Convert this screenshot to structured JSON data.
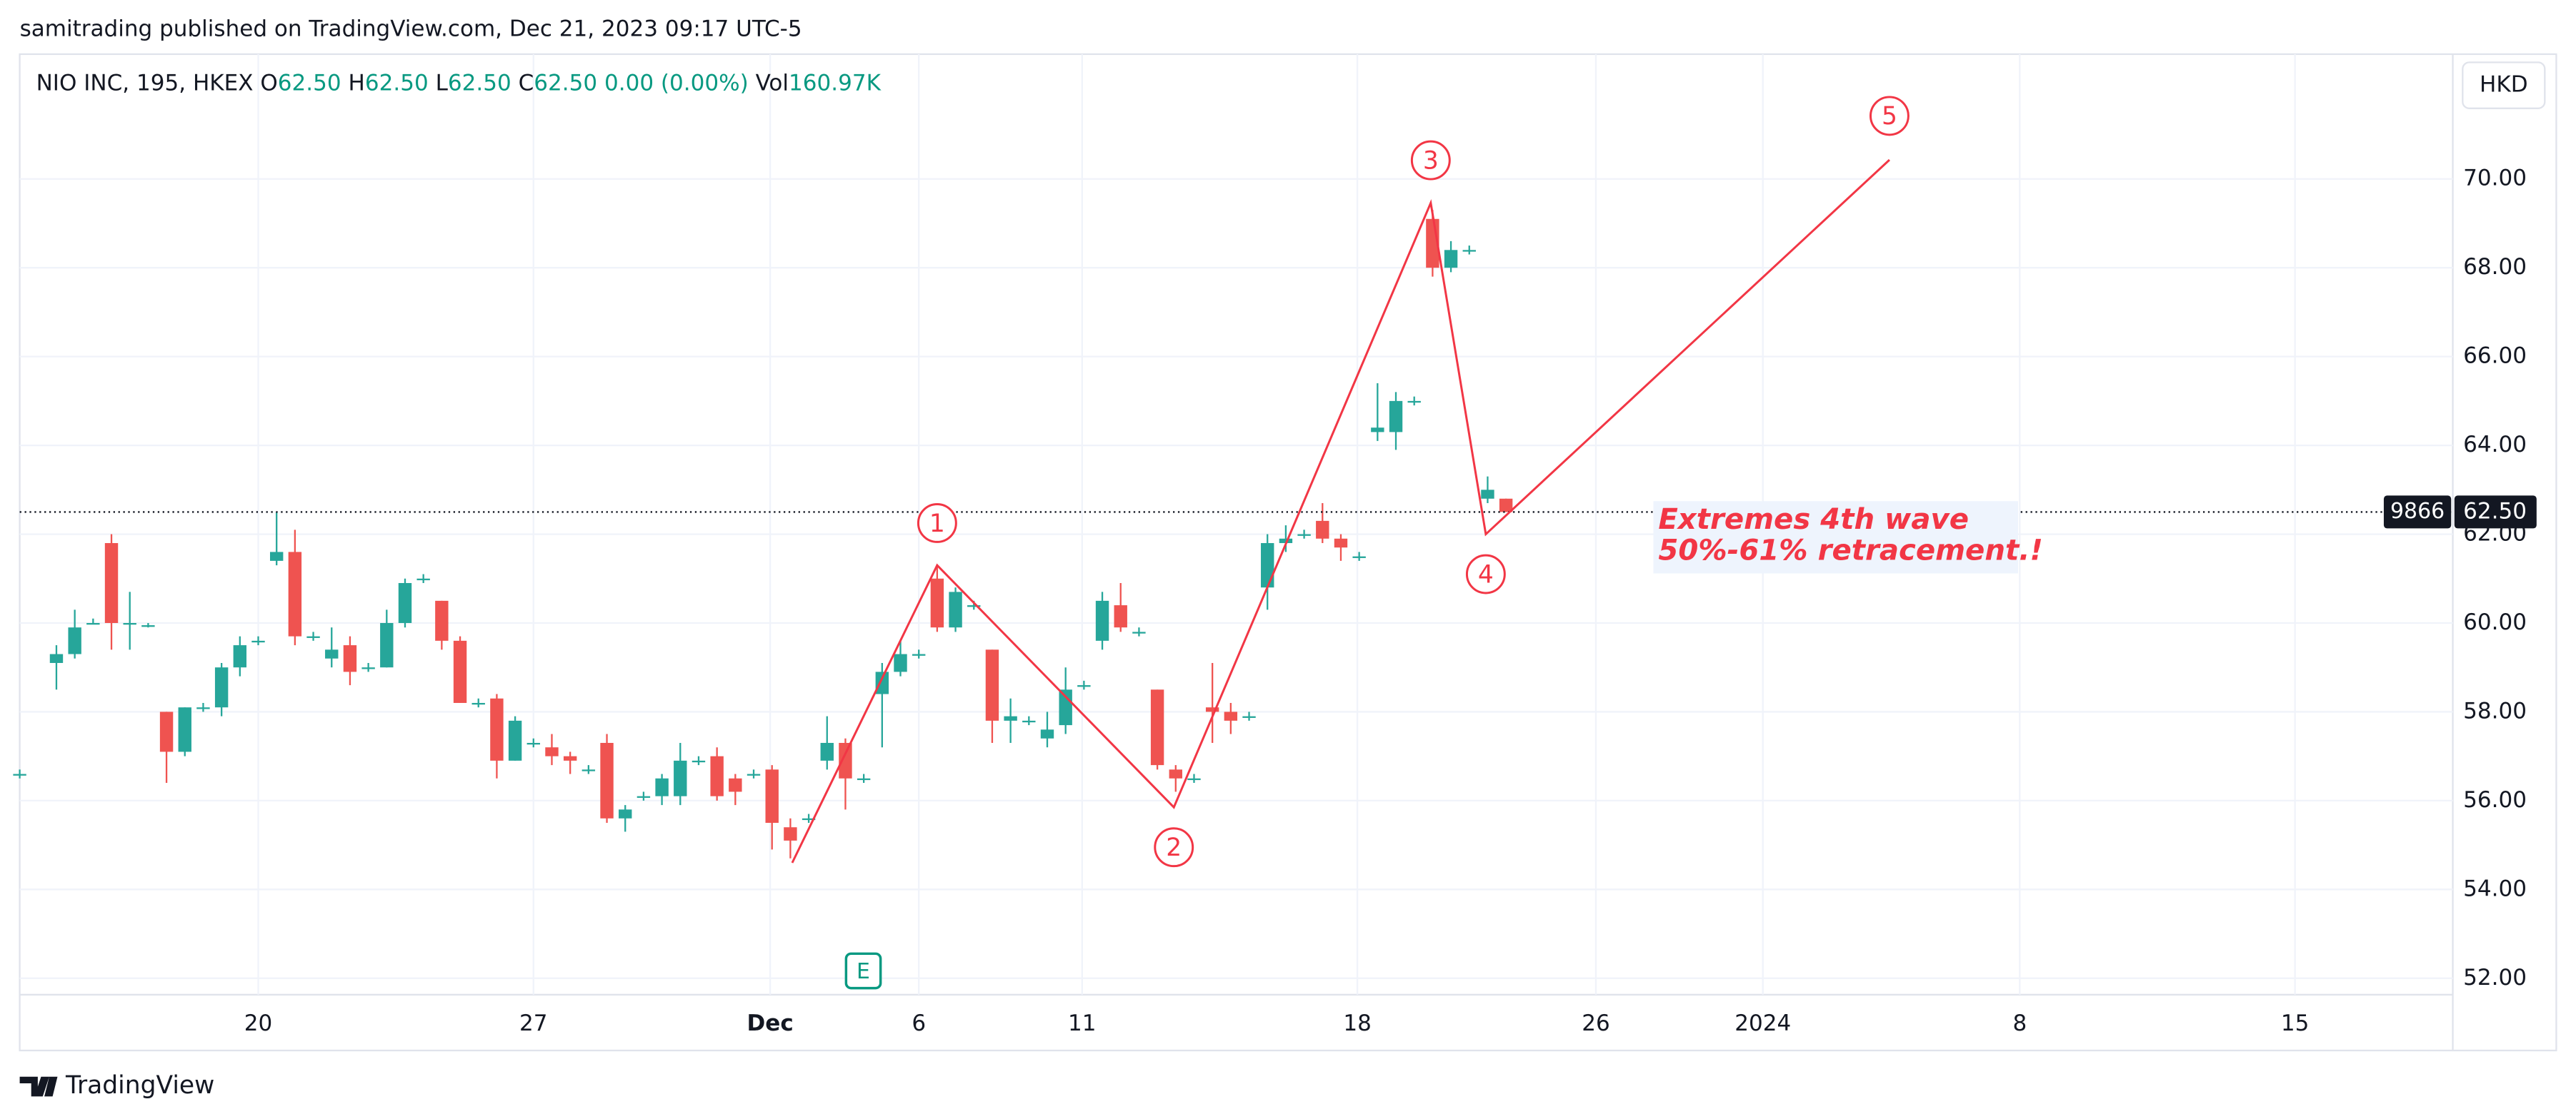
{
  "chart_data": {
    "type": "candlestick",
    "published": "samitrading published on TradingView.com, Dec 21, 2023 09:17 UTC-5",
    "legend": {
      "symbol": "NIO INC, 195, HKEX",
      "o": "O",
      "open": "62.50",
      "h": "H",
      "high": "62.50",
      "l": "L",
      "low": "62.50",
      "c": "C",
      "close": "62.50",
      "change": "0.00 (0.00%)",
      "vol": "Vol",
      "volume": "160.97K"
    },
    "currency": "HKD",
    "brand": "TradingView",
    "event_marker": "E",
    "up_color": "#26a69a",
    "down_color": "#ef5350",
    "grid": true,
    "xlim": [
      0,
      132.6
    ],
    "ylim": [
      51.63,
      72.81
    ],
    "xticks": [
      {
        "value": 13,
        "label": "20"
      },
      {
        "value": 28,
        "label": "27"
      },
      {
        "value": 40.9,
        "label": "Dec"
      },
      {
        "value": 49,
        "label": "6"
      },
      {
        "value": 57.9,
        "label": "11"
      },
      {
        "value": 72.9,
        "label": "18"
      },
      {
        "value": 85.9,
        "label": "26"
      },
      {
        "value": 95,
        "label": "2024"
      },
      {
        "value": 109,
        "label": "8"
      },
      {
        "value": 124,
        "label": "15"
      }
    ],
    "yticks": [
      {
        "value": 52,
        "label": "52.00"
      },
      {
        "value": 54,
        "label": "54.00"
      },
      {
        "value": 56,
        "label": "56.00"
      },
      {
        "value": 58,
        "label": "58.00"
      },
      {
        "value": 60,
        "label": "60.00"
      },
      {
        "value": 62,
        "label": "62.00"
      },
      {
        "value": 64,
        "label": "64.00"
      },
      {
        "value": 66,
        "label": "66.00"
      },
      {
        "value": 68,
        "label": "68.00"
      },
      {
        "value": 70,
        "label": "70.00"
      }
    ],
    "open": [
      56.6,
      null,
      59.1,
      59.3,
      60.0,
      61.8,
      60.0,
      59.95,
      58.0,
      57.1,
      58.1,
      58.1,
      59.0,
      59.6,
      61.4,
      61.6,
      59.7,
      59.2,
      59.5,
      59.0,
      59.0,
      60.0,
      61.0,
      60.5,
      59.6,
      58.2,
      58.3,
      56.9,
      57.3,
      57.2,
      57.0,
      56.7,
      57.3,
      55.6,
      56.1,
      56.1,
      56.1,
      56.9,
      57.0,
      56.5,
      56.6,
      56.7,
      55.4,
      55.6,
      56.9,
      57.3,
      56.5,
      58.4,
      58.9,
      59.3,
      61.0,
      59.9,
      60.4,
      59.4,
      57.8,
      57.8,
      57.4,
      57.7,
      58.6,
      59.6,
      60.4,
      59.8,
      58.5,
      56.7,
      56.5,
      58.1,
      58.0,
      57.9,
      60.8,
      61.8,
      62.0,
      62.3,
      61.9,
      61.5,
      64.3,
      64.3,
      65.0,
      69.1,
      68.0,
      68.4,
      62.8,
      62.8
    ],
    "high": [
      56.7,
      null,
      59.5,
      60.3,
      60.1,
      62.0,
      60.7,
      60.0,
      58.0,
      58.1,
      58.2,
      59.1,
      59.7,
      59.7,
      62.5,
      62.1,
      59.8,
      59.9,
      59.7,
      59.1,
      60.3,
      61.0,
      61.1,
      60.5,
      59.7,
      58.3,
      58.4,
      57.9,
      57.4,
      57.5,
      57.1,
      56.8,
      57.5,
      55.9,
      56.2,
      56.6,
      57.3,
      57.0,
      57.2,
      56.6,
      56.7,
      56.8,
      55.6,
      55.7,
      57.9,
      57.4,
      56.6,
      59.1,
      59.6,
      59.4,
      61.3,
      60.8,
      60.5,
      59.4,
      58.3,
      57.9,
      58.0,
      59.0,
      58.7,
      60.7,
      60.9,
      59.9,
      58.5,
      56.8,
      56.6,
      59.1,
      58.2,
      58.0,
      62.0,
      62.2,
      62.1,
      62.7,
      62.0,
      61.6,
      65.4,
      65.2,
      65.1,
      69.3,
      68.6,
      68.5,
      63.3,
      62.8
    ],
    "low": [
      56.5,
      null,
      58.5,
      59.2,
      60.0,
      59.4,
      59.4,
      59.9,
      56.4,
      57.0,
      58.0,
      57.9,
      58.8,
      59.5,
      61.3,
      59.5,
      59.6,
      59.0,
      58.6,
      58.9,
      59.0,
      59.9,
      60.9,
      59.4,
      58.2,
      58.1,
      56.5,
      56.9,
      57.2,
      56.8,
      56.6,
      56.6,
      55.5,
      55.3,
      56.0,
      55.9,
      55.9,
      56.8,
      56.0,
      55.9,
      56.5,
      54.9,
      54.7,
      55.5,
      56.7,
      55.8,
      56.4,
      57.2,
      58.8,
      59.2,
      59.8,
      59.8,
      60.3,
      57.3,
      57.3,
      57.7,
      57.2,
      57.5,
      58.5,
      59.4,
      59.8,
      59.7,
      56.7,
      56.2,
      56.4,
      57.3,
      57.5,
      57.8,
      60.3,
      61.6,
      61.9,
      61.8,
      61.4,
      61.4,
      64.1,
      63.9,
      64.9,
      67.8,
      67.9,
      68.3,
      62.7,
      62.5
    ],
    "close": [
      56.6,
      null,
      59.3,
      59.9,
      60.0,
      60.0,
      60.0,
      59.95,
      57.1,
      58.1,
      58.1,
      59.0,
      59.5,
      59.6,
      61.6,
      59.7,
      59.7,
      59.4,
      58.9,
      59.0,
      60.0,
      60.9,
      61.0,
      59.6,
      58.2,
      58.2,
      56.9,
      57.8,
      57.3,
      57.0,
      56.9,
      56.7,
      55.6,
      55.8,
      56.1,
      56.5,
      56.9,
      56.9,
      56.1,
      56.2,
      56.6,
      55.5,
      55.1,
      55.6,
      57.3,
      56.5,
      56.5,
      58.9,
      59.3,
      59.3,
      59.9,
      60.7,
      60.4,
      57.8,
      57.9,
      57.8,
      57.6,
      58.5,
      58.6,
      60.5,
      59.9,
      59.8,
      56.8,
      56.5,
      56.5,
      58.0,
      57.8,
      57.9,
      61.8,
      61.9,
      62.0,
      61.9,
      61.7,
      61.5,
      64.4,
      65.0,
      65.0,
      68.0,
      68.4,
      68.4,
      63.0,
      62.5
    ],
    "price_line": {
      "value": 62.5,
      "label": "62.50",
      "tag": "9866"
    },
    "wave": {
      "x": [
        42.1,
        50.0,
        62.9,
        76.9,
        79.9,
        101.9
      ],
      "values": [
        54.6,
        61.3,
        55.85,
        69.46,
        62.0,
        70.43
      ],
      "color": "#f23645",
      "labels": [
        "1",
        "2",
        "3",
        "4",
        "5"
      ],
      "label_x": [
        50.0,
        62.9,
        76.9,
        79.9,
        101.9
      ],
      "label_values": [
        62.25,
        54.95,
        70.42,
        61.1,
        71.42
      ]
    },
    "annotation": {
      "lines": [
        "Extremes 4th wave",
        "50%-61% retracement.!"
      ],
      "x": 89.3,
      "value": 62.3
    }
  }
}
